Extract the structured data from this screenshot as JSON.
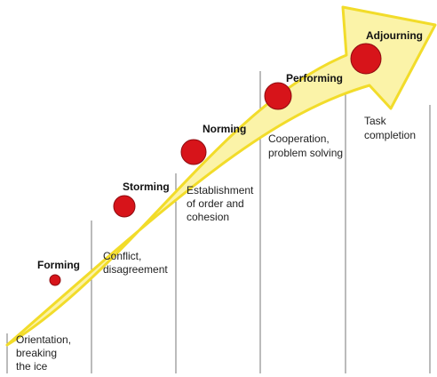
{
  "stages": [
    {
      "id": "forming",
      "title": "Forming",
      "description": [
        "Orientation,",
        "breaking",
        "the ice"
      ]
    },
    {
      "id": "storming",
      "title": "Storming",
      "description": [
        "Conflict,",
        "disagreement"
      ]
    },
    {
      "id": "norming",
      "title": "Norming",
      "description": [
        "Establishment",
        "of order and",
        "cohesion"
      ]
    },
    {
      "id": "performing",
      "title": "Performing",
      "description": [
        "Cooperation,",
        "problem solving"
      ]
    },
    {
      "id": "adjourning",
      "title": "Adjourning",
      "description": [
        "Task",
        "completion"
      ]
    }
  ],
  "colors": {
    "arrow_fill": "#fbf3a8",
    "arrow_stroke": "#f2dc2a",
    "circle_fill": "#d7141a",
    "circle_stroke": "#8e0c10",
    "divider": "#777777"
  }
}
